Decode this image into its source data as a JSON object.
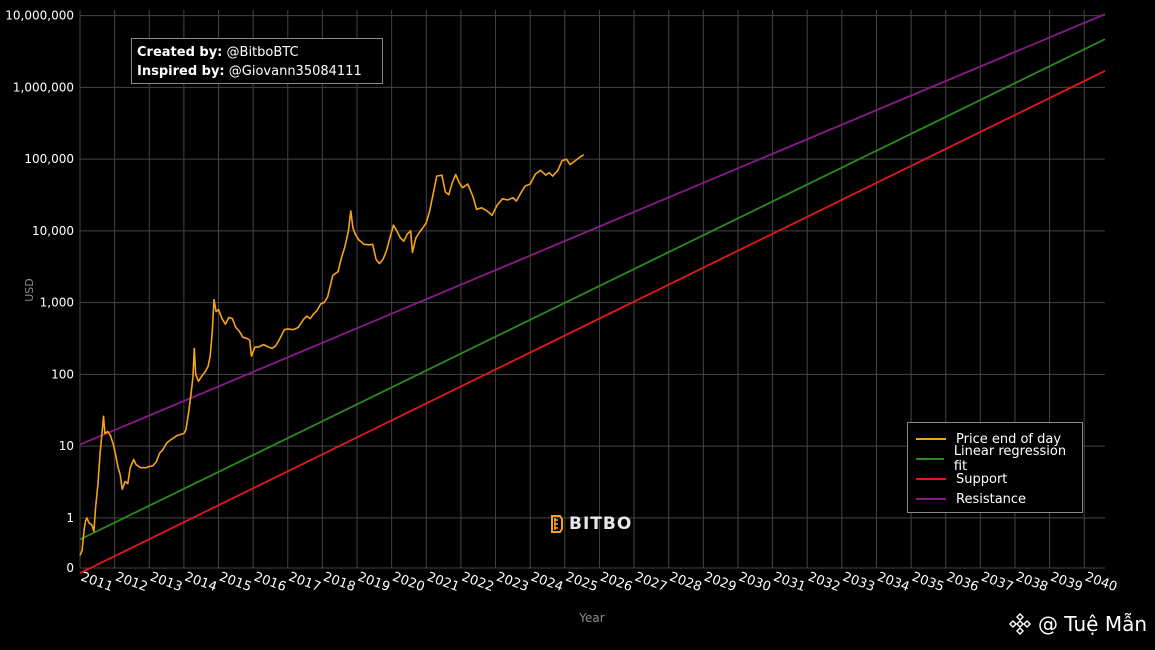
{
  "chart_data": {
    "type": "line",
    "xlabel": "Year",
    "ylabel": "USD",
    "y_scale": "log",
    "ylim": [
      0.2,
      12000000
    ],
    "xlim": [
      2011,
      2040.6
    ],
    "grid": true,
    "legend_placement": "bottom-right",
    "y_ticks": [
      {
        "value": 0.2,
        "label": "0"
      },
      {
        "value": 1,
        "label": "1"
      },
      {
        "value": 10,
        "label": "10"
      },
      {
        "value": 100,
        "label": "100"
      },
      {
        "value": 1000,
        "label": "1,000"
      },
      {
        "value": 10000,
        "label": "10,000"
      },
      {
        "value": 100000,
        "label": "100,000"
      },
      {
        "value": 1000000,
        "label": "1,000,000"
      },
      {
        "value": 10000000,
        "label": "10,000,000"
      }
    ],
    "x_ticks": [
      {
        "value": 2011,
        "label": "2011"
      },
      {
        "value": 2012,
        "label": "2012"
      },
      {
        "value": 2013,
        "label": "2013"
      },
      {
        "value": 2014,
        "label": "2014"
      },
      {
        "value": 2015,
        "label": "2015"
      },
      {
        "value": 2016,
        "label": "2016"
      },
      {
        "value": 2017,
        "label": "2017"
      },
      {
        "value": 2018,
        "label": "2018"
      },
      {
        "value": 2019,
        "label": "2019"
      },
      {
        "value": 2020,
        "label": "2020"
      },
      {
        "value": 2021,
        "label": "2021"
      },
      {
        "value": 2022,
        "label": "2022"
      },
      {
        "value": 2023,
        "label": "2023"
      },
      {
        "value": 2024,
        "label": "2024"
      },
      {
        "value": 2025,
        "label": "2025"
      },
      {
        "value": 2026,
        "label": "2026"
      },
      {
        "value": 2027,
        "label": "2027"
      },
      {
        "value": 2028,
        "label": "2028"
      },
      {
        "value": 2029,
        "label": "2029"
      },
      {
        "value": 2030,
        "label": "2030"
      },
      {
        "value": 2031,
        "label": "2031"
      },
      {
        "value": 2032,
        "label": "2032"
      },
      {
        "value": 2033,
        "label": "2033"
      },
      {
        "value": 2034,
        "label": "2034"
      },
      {
        "value": 2035,
        "label": "2035"
      },
      {
        "value": 2036,
        "label": "2036"
      },
      {
        "value": 2037,
        "label": "2037"
      },
      {
        "value": 2038,
        "label": "2038"
      },
      {
        "value": 2039,
        "label": "2039"
      },
      {
        "value": 2040,
        "label": "2040"
      }
    ],
    "series": [
      {
        "name": "Price end of day",
        "color": "#f7a21b",
        "points": [
          [
            2011.0,
            0.3
          ],
          [
            2011.06,
            0.35
          ],
          [
            2011.12,
            0.7
          ],
          [
            2011.16,
            0.9
          ],
          [
            2011.2,
            1.0
          ],
          [
            2011.26,
            0.85
          ],
          [
            2011.34,
            0.8
          ],
          [
            2011.4,
            0.65
          ],
          [
            2011.45,
            1.4
          ],
          [
            2011.52,
            3.0
          ],
          [
            2011.58,
            8.0
          ],
          [
            2011.63,
            14.0
          ],
          [
            2011.68,
            26.0
          ],
          [
            2011.72,
            15.0
          ],
          [
            2011.8,
            16.0
          ],
          [
            2011.88,
            14.0
          ],
          [
            2011.95,
            11.0
          ],
          [
            2012.02,
            8.0
          ],
          [
            2012.1,
            5.0
          ],
          [
            2012.16,
            4.0
          ],
          [
            2012.22,
            2.5
          ],
          [
            2012.3,
            3.2
          ],
          [
            2012.38,
            3.0
          ],
          [
            2012.45,
            5.0
          ],
          [
            2012.55,
            6.5
          ],
          [
            2012.62,
            5.5
          ],
          [
            2012.75,
            5.0
          ],
          [
            2012.9,
            5.0
          ],
          [
            2013.0,
            5.2
          ],
          [
            2013.1,
            5.3
          ],
          [
            2013.2,
            6.0
          ],
          [
            2013.3,
            8.0
          ],
          [
            2013.4,
            9.0
          ],
          [
            2013.5,
            11.0
          ],
          [
            2013.6,
            12.0
          ],
          [
            2013.7,
            13.0
          ],
          [
            2013.8,
            14.0
          ],
          [
            2013.9,
            14.5
          ],
          [
            2014.0,
            15.0
          ],
          [
            2014.06,
            17.0
          ],
          [
            2014.14,
            30.0
          ],
          [
            2014.2,
            50.0
          ],
          [
            2014.26,
            90.0
          ],
          [
            2014.3,
            230.0
          ],
          [
            2014.34,
            100.0
          ],
          [
            2014.42,
            80.0
          ],
          [
            2014.52,
            95.0
          ],
          [
            2014.62,
            110.0
          ],
          [
            2014.7,
            130.0
          ],
          [
            2014.76,
            180.0
          ],
          [
            2014.82,
            400.0
          ],
          [
            2014.87,
            1100.0
          ],
          [
            2014.93,
            750.0
          ],
          [
            2015.0,
            800.0
          ],
          [
            2015.1,
            600.0
          ],
          [
            2015.2,
            500.0
          ],
          [
            2015.3,
            620.0
          ],
          [
            2015.4,
            600.0
          ],
          [
            2015.5,
            450.0
          ],
          [
            2015.6,
            400.0
          ],
          [
            2015.7,
            330.0
          ],
          [
            2015.8,
            320.0
          ],
          [
            2015.9,
            300.0
          ],
          [
            2015.95,
            180.0
          ],
          [
            2016.05,
            240.0
          ],
          [
            2016.15,
            240.0
          ],
          [
            2016.3,
            260.0
          ],
          [
            2016.45,
            240.0
          ],
          [
            2016.55,
            230.0
          ],
          [
            2016.65,
            250.0
          ],
          [
            2016.75,
            300.0
          ],
          [
            2016.9,
            420.0
          ],
          [
            2017.0,
            430.0
          ],
          [
            2017.15,
            420.0
          ],
          [
            2017.3,
            450.0
          ],
          [
            2017.45,
            580.0
          ],
          [
            2017.55,
            650.0
          ],
          [
            2017.65,
            600.0
          ],
          [
            2017.75,
            700.0
          ],
          [
            2017.85,
            780.0
          ],
          [
            2017.95,
            960.0
          ],
          [
            2018.05,
            1000.0
          ],
          [
            2018.15,
            1200.0
          ],
          [
            2018.3,
            2400.0
          ],
          [
            2018.45,
            2700.0
          ],
          [
            2018.55,
            4200.0
          ],
          [
            2018.65,
            6000.0
          ],
          [
            2018.75,
            10000.0
          ],
          [
            2018.82,
            19000.0
          ],
          [
            2018.88,
            11000.0
          ],
          [
            2018.95,
            9000.0
          ],
          [
            2019.05,
            7500.0
          ],
          [
            2019.2,
            6500.0
          ],
          [
            2019.35,
            6400.0
          ],
          [
            2019.45,
            6500.0
          ],
          [
            2019.55,
            4000.0
          ],
          [
            2019.65,
            3500.0
          ],
          [
            2019.75,
            4000.0
          ],
          [
            2019.85,
            5300.0
          ],
          [
            2019.95,
            8000.0
          ],
          [
            2020.05,
            12000.0
          ],
          [
            2020.15,
            10000.0
          ],
          [
            2020.25,
            8000.0
          ],
          [
            2020.35,
            7200.0
          ],
          [
            2020.45,
            9000.0
          ],
          [
            2020.55,
            10000.0
          ],
          [
            2020.6,
            5000.0
          ],
          [
            2020.7,
            8000.0
          ],
          [
            2020.8,
            9500.0
          ],
          [
            2020.9,
            11000.0
          ],
          [
            2021.0,
            13000.0
          ],
          [
            2021.1,
            19000.0
          ],
          [
            2021.2,
            33000.0
          ],
          [
            2021.3,
            58000.0
          ],
          [
            2021.45,
            60000.0
          ],
          [
            2021.55,
            35000.0
          ],
          [
            2021.65,
            32000.0
          ],
          [
            2021.75,
            47000.0
          ],
          [
            2021.85,
            61000.0
          ],
          [
            2021.95,
            47000.0
          ],
          [
            2022.05,
            40000.0
          ],
          [
            2022.2,
            45000.0
          ],
          [
            2022.35,
            30000.0
          ],
          [
            2022.45,
            20000.0
          ],
          [
            2022.6,
            21000.0
          ],
          [
            2022.75,
            19000.0
          ],
          [
            2022.9,
            16500.0
          ],
          [
            2023.05,
            23000.0
          ],
          [
            2023.2,
            28000.0
          ],
          [
            2023.35,
            27000.0
          ],
          [
            2023.5,
            29000.0
          ],
          [
            2023.6,
            26000.0
          ],
          [
            2023.75,
            35000.0
          ],
          [
            2023.85,
            42000.0
          ],
          [
            2024.0,
            45000.0
          ],
          [
            2024.15,
            62000.0
          ],
          [
            2024.3,
            70000.0
          ],
          [
            2024.45,
            60000.0
          ],
          [
            2024.55,
            65000.0
          ],
          [
            2024.65,
            58000.0
          ],
          [
            2024.8,
            70000.0
          ],
          [
            2024.92,
            95000.0
          ],
          [
            2025.05,
            100000.0
          ],
          [
            2025.15,
            84000.0
          ],
          [
            2025.3,
            95000.0
          ],
          [
            2025.45,
            108000.0
          ],
          [
            2025.55,
            115000.0
          ]
        ]
      },
      {
        "name": "Linear regression fit",
        "color": "#2b8a1e",
        "points": [
          [
            2011.0,
            0.5
          ],
          [
            2040.6,
            4700000
          ]
        ]
      },
      {
        "name": "Support",
        "color": "#e0191b",
        "points": [
          [
            2011.0,
            0.17
          ],
          [
            2040.6,
            1700000
          ]
        ]
      },
      {
        "name": "Resistance",
        "color": "#8a1a8a",
        "points": [
          [
            2011.0,
            10.5
          ],
          [
            2040.6,
            10500000
          ]
        ]
      }
    ]
  },
  "credits": {
    "created_label": "Created by:",
    "created_value": "@BitboBTC",
    "inspired_label": "Inspired by:",
    "inspired_value": "@Giovann35084111"
  },
  "watermark": "BITBO",
  "author": "@ Tuệ Mẫn"
}
